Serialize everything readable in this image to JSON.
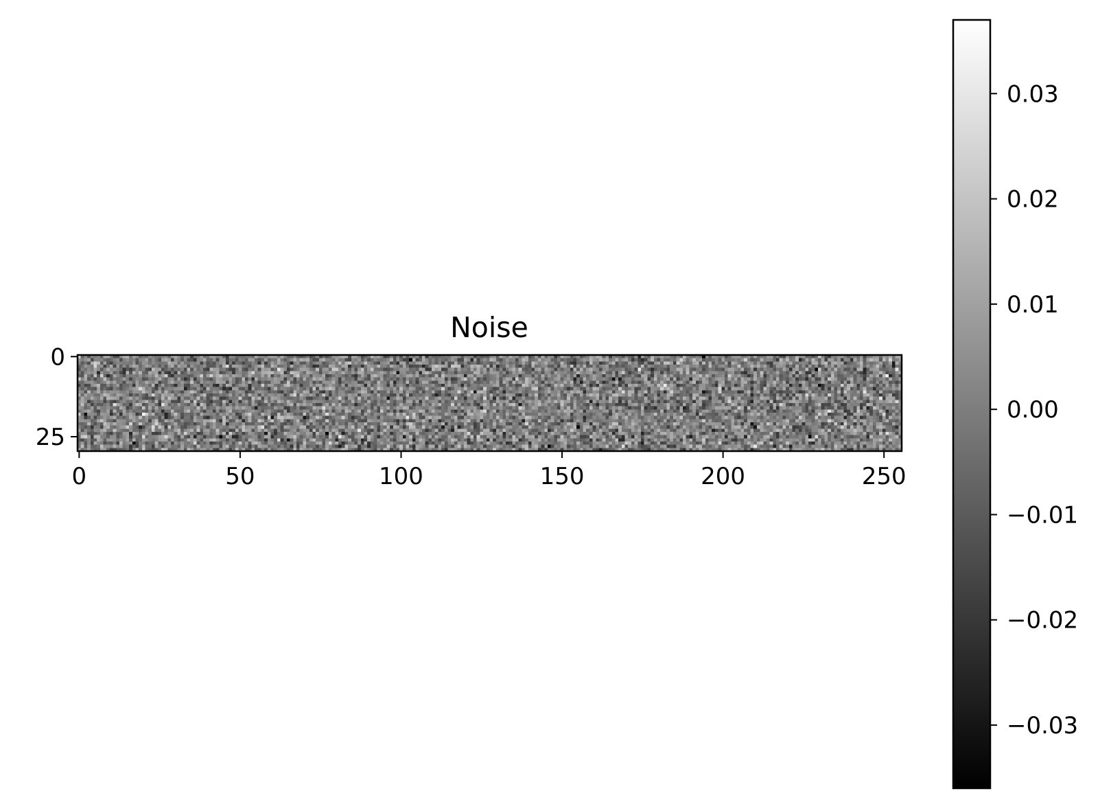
{
  "chart_data": {
    "type": "heatmap",
    "title": "Noise",
    "xlabel": "",
    "ylabel": "",
    "colormap": "gray",
    "image": {
      "columns": 256,
      "rows": 30,
      "value_distribution": "random noise, approximately normal, mean 0, std 0.01",
      "xlim": [
        -0.5,
        255.5
      ],
      "ylim": [
        29.5,
        -0.5
      ]
    },
    "x_ticks": [
      {
        "value": 0,
        "label": "0"
      },
      {
        "value": 50,
        "label": "50"
      },
      {
        "value": 100,
        "label": "100"
      },
      {
        "value": 150,
        "label": "150"
      },
      {
        "value": 200,
        "label": "200"
      },
      {
        "value": 250,
        "label": "250"
      }
    ],
    "y_ticks": [
      {
        "value": 0,
        "label": "0"
      },
      {
        "value": 25,
        "label": "25"
      }
    ],
    "colorbar": {
      "vmin": -0.036,
      "vmax": 0.037,
      "cmap_from": "#000000",
      "cmap_to": "#ffffff",
      "ticks": [
        {
          "value": 0.03,
          "label": "0.03"
        },
        {
          "value": 0.02,
          "label": "0.02"
        },
        {
          "value": 0.01,
          "label": "0.01"
        },
        {
          "value": 0.0,
          "label": "0.00"
        },
        {
          "value": -0.01,
          "label": "−0.01"
        },
        {
          "value": -0.02,
          "label": "−0.02"
        },
        {
          "value": -0.03,
          "label": "−0.03"
        }
      ]
    }
  }
}
